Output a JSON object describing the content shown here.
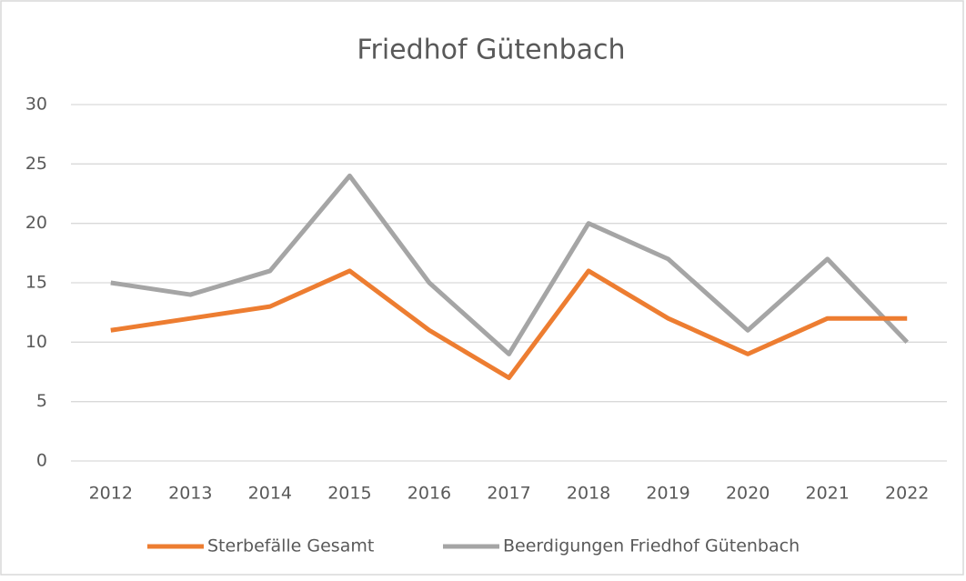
{
  "chart_data": {
    "type": "line",
    "title": "Friedhof Gütenbach",
    "categories": [
      "2012",
      "2013",
      "2014",
      "2015",
      "2016",
      "2017",
      "2018",
      "2019",
      "2020",
      "2021",
      "2022"
    ],
    "series": [
      {
        "name": "Sterbefälle Gesamt",
        "color": "#ed7d31",
        "values": [
          11,
          12,
          13,
          16,
          11,
          7,
          16,
          12,
          9,
          12,
          12
        ]
      },
      {
        "name": "Beerdigungen Friedhof Gütenbach",
        "color": "#a5a5a5",
        "values": [
          15,
          14,
          16,
          24,
          15,
          9,
          20,
          17,
          11,
          17,
          10
        ]
      }
    ],
    "ylim": [
      0,
      30
    ],
    "yticks": [
      0,
      5,
      10,
      15,
      20,
      25,
      30
    ],
    "grid": true,
    "legend": "bottom"
  }
}
